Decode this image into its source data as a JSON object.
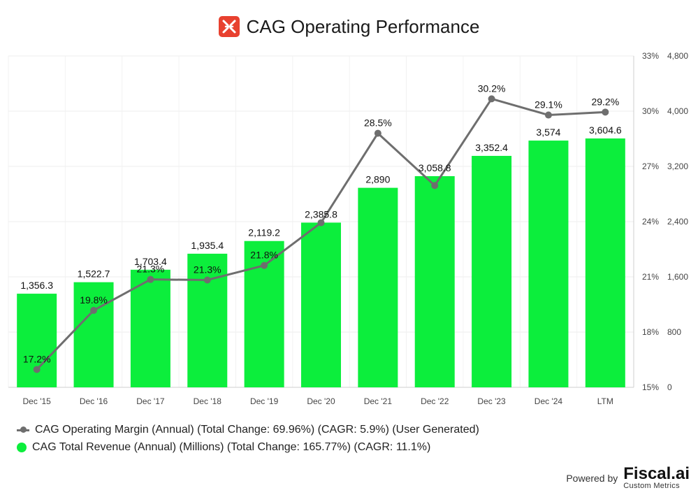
{
  "title": "CAG Operating Performance",
  "logo_icon": "cag-logo-icon",
  "colors": {
    "bar": "#0cee3c",
    "line": "#6e6e6e",
    "logo": "#e8412f"
  },
  "chart_data": {
    "type": "bar",
    "categories": [
      "Dec '15",
      "Dec '16",
      "Dec '17",
      "Dec '18",
      "Dec '19",
      "Dec '20",
      "Dec '21",
      "Dec '22",
      "Dec '23",
      "Dec '24",
      "LTM"
    ],
    "series": [
      {
        "name": "CAG Total Revenue (Annual) (Millions) (Total Change: 165.77%) (CAGR: 11.1%)",
        "type": "bar",
        "axis": "right",
        "values": [
          1356.3,
          1522.7,
          1703.4,
          1935.4,
          2119.2,
          2385.8,
          2890,
          3058.8,
          3352.4,
          3574,
          3604.6
        ],
        "labels": [
          "1,356.3",
          "1,522.7",
          "1,703.4",
          "1,935.4",
          "2,119.2",
          "2,385.8",
          "2,890",
          "3,058.8",
          "3,352.4",
          "3,574",
          "3,604.6"
        ]
      },
      {
        "name": "CAG Operating Margin (Annual) (Total Change: 69.96%) (CAGR: 5.9%) (User Generated)",
        "type": "line",
        "axis": "left",
        "values": [
          15.97,
          19.18,
          20.86,
          20.83,
          21.62,
          23.94,
          28.8,
          25.96,
          30.67,
          29.79,
          29.95
        ],
        "labels": [
          "17.2%",
          "19.8%",
          "21.3%",
          "21.3%",
          "21.8%",
          "",
          "28.5%",
          "",
          "30.2%",
          "29.1%",
          "29.2%"
        ]
      }
    ],
    "y_left": {
      "range": [
        15,
        33
      ],
      "ticks": [
        "15%",
        "18%",
        "21%",
        "24%",
        "27%",
        "30%",
        "33%"
      ],
      "values": [
        15,
        18,
        21,
        24,
        27,
        30,
        33
      ]
    },
    "y_right": {
      "range": [
        0,
        4800
      ],
      "ticks": [
        "0",
        "800",
        "1,600",
        "2,400",
        "3,200",
        "4,000",
        "4,800"
      ],
      "values": [
        0,
        800,
        1600,
        2400,
        3200,
        4000,
        4800
      ]
    },
    "grid": true,
    "legend_position": "bottom-left"
  },
  "legend": [
    {
      "label": "CAG Operating Margin (Annual) (Total Change: 69.96%) (CAGR: 5.9%) (User Generated)",
      "marker": "line"
    },
    {
      "label": "CAG Total Revenue (Annual) (Millions) (Total Change: 165.77%) (CAGR: 11.1%)",
      "marker": "dot"
    }
  ],
  "footer": {
    "powered_by": "Powered by",
    "brand": "Fiscal.ai",
    "brand_sub": "Custom Metrics"
  }
}
